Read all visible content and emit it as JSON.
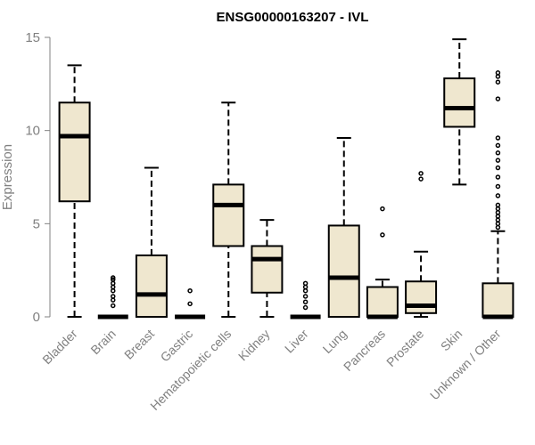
{
  "chart_data": {
    "type": "boxplot",
    "title": "ENSG00000163207 - IVL",
    "xlabel": "",
    "ylabel": "Expression",
    "ylim": [
      0,
      15
    ],
    "yticks": [
      0,
      5,
      10,
      15
    ],
    "grid": false,
    "categories": [
      "Bladder",
      "Brain",
      "Breast",
      "Gastric",
      "Hematopoietic cells",
      "Kidney",
      "Liver",
      "Lung",
      "Pancreas",
      "Prostate",
      "Skin",
      "Unknown / Other"
    ],
    "boxes": [
      {
        "category": "Bladder",
        "min": 0,
        "q1": 6.2,
        "median": 9.7,
        "q3": 11.5,
        "max": 13.5,
        "outliers": []
      },
      {
        "category": "Brain",
        "min": 0,
        "q1": 0,
        "median": 0,
        "q3": 0,
        "max": 0,
        "outliers": [
          0.6,
          0.9,
          1.1,
          1.4,
          1.6,
          1.8,
          2.0,
          2.1
        ]
      },
      {
        "category": "Breast",
        "min": 0,
        "q1": 0,
        "median": 1.2,
        "q3": 3.3,
        "max": 8.0,
        "outliers": []
      },
      {
        "category": "Gastric",
        "min": 0,
        "q1": 0,
        "median": 0,
        "q3": 0,
        "max": 0,
        "outliers": [
          0.7,
          1.4
        ]
      },
      {
        "category": "Hematopoietic cells",
        "min": 0,
        "q1": 3.8,
        "median": 6.0,
        "q3": 7.1,
        "max": 11.5,
        "outliers": []
      },
      {
        "category": "Kidney",
        "min": 0,
        "q1": 1.3,
        "median": 3.1,
        "q3": 3.8,
        "max": 5.2,
        "outliers": []
      },
      {
        "category": "Liver",
        "min": 0,
        "q1": 0,
        "median": 0,
        "q3": 0,
        "max": 0,
        "outliers": [
          0.5,
          0.8,
          1.1,
          1.4,
          1.6,
          1.8
        ]
      },
      {
        "category": "Lung",
        "min": 0,
        "q1": 0,
        "median": 2.1,
        "q3": 4.9,
        "max": 9.6,
        "outliers": []
      },
      {
        "category": "Pancreas",
        "min": 0,
        "q1": 0,
        "median": 0,
        "q3": 1.6,
        "max": 2.0,
        "outliers": [
          4.4,
          5.8
        ]
      },
      {
        "category": "Prostate",
        "min": 0,
        "q1": 0.2,
        "median": 0.6,
        "q3": 1.9,
        "max": 3.5,
        "outliers": [
          7.4,
          7.7
        ]
      },
      {
        "category": "Skin",
        "min": 7.1,
        "q1": 10.2,
        "median": 11.2,
        "q3": 12.8,
        "max": 14.9,
        "outliers": []
      },
      {
        "category": "Unknown / Other",
        "min": 0,
        "q1": 0,
        "median": 0,
        "q3": 1.8,
        "max": 4.6,
        "outliers": [
          4.8,
          5.0,
          5.2,
          5.4,
          5.6,
          5.8,
          6.0,
          6.5,
          7.0,
          7.5,
          8.0,
          8.4,
          8.8,
          9.2,
          9.6,
          11.7,
          12.6,
          12.9,
          13.1
        ]
      }
    ]
  }
}
